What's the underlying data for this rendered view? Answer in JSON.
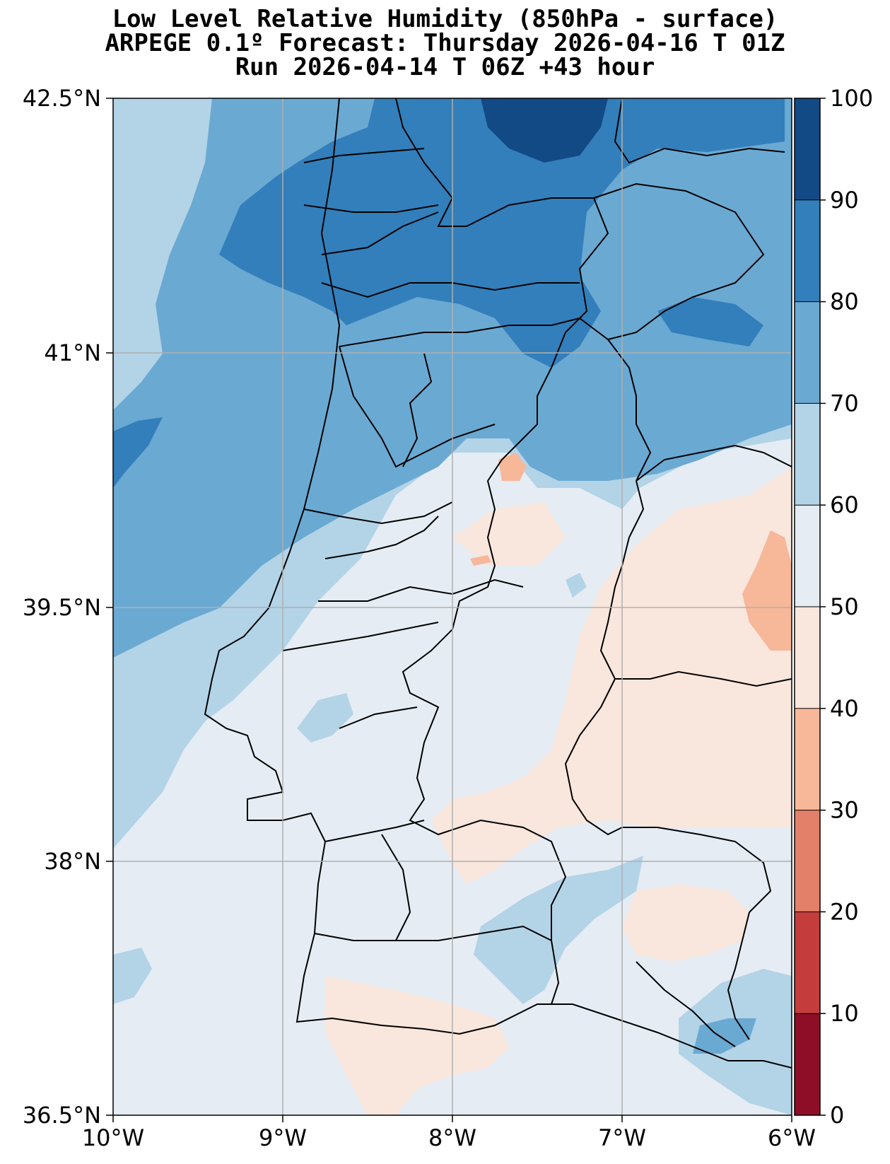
{
  "title": {
    "line1": "Low Level Relative Humidity (850hPa - surface)",
    "line2": "ARPEGE 0.1º Forecast: Thursday 2026-04-16 T 01Z",
    "line3": "Run 2026-04-14 T 06Z +43 hour"
  },
  "map": {
    "lat_labels": [
      "42.5°N",
      "41°N",
      "39.5°N",
      "38°N",
      "36.5°N"
    ],
    "lon_labels": [
      "10°W",
      "9°W",
      "8°W",
      "7°W",
      "6°W"
    ],
    "region": {
      "lon_min": -10,
      "lon_max": -6,
      "lat_min": 36.5,
      "lat_max": 42.5
    }
  },
  "colorbar": {
    "ticks": [
      "100",
      "90",
      "80",
      "70",
      "60",
      "50",
      "40",
      "30",
      "20",
      "10",
      "0"
    ],
    "colors": [
      "#124a86",
      "#327fbb",
      "#6aa9d2",
      "#b3d3e7",
      "#e5ecf3",
      "#f9e6dc",
      "#f7b799",
      "#e3806a",
      "#c43c3c",
      "#8e0d27"
    ],
    "color_labels": [
      "90-100",
      "80-90",
      "70-80",
      "60-70",
      "50-60",
      "40-50",
      "30-40",
      "20-30",
      "10-20",
      "0-10"
    ]
  },
  "palette": {
    "rh_90_100": "#124a86",
    "rh_80_90": "#327fbb",
    "rh_70_80": "#6aa9d2",
    "rh_60_70": "#b3d3e7",
    "rh_50_60": "#e5ecf3",
    "rh_40_50": "#f9e6dc",
    "rh_30_40": "#f7b799"
  }
}
